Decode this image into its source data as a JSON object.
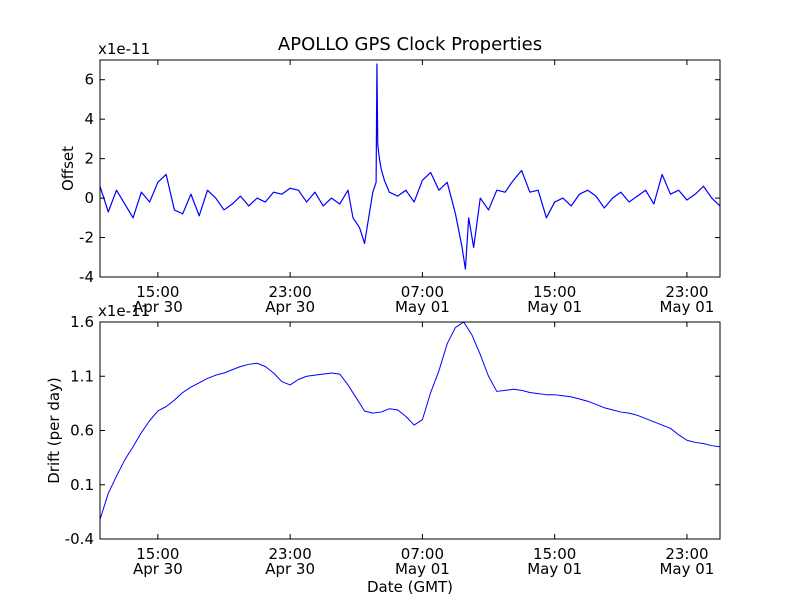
{
  "chart_data": [
    {
      "type": "line",
      "title": "APOLLO GPS Clock Properties",
      "ylabel": "Offset",
      "xlabel": "",
      "scale_label": "x1e-11",
      "x_unit": "hours since Apr 30 11:30 GMT",
      "xlim": [
        0,
        37.5
      ],
      "ylim": [
        -4,
        7
      ],
      "yticks": [
        "6",
        "4",
        "2",
        "0",
        "-2",
        "-4"
      ],
      "ytick_values": [
        6,
        4,
        2,
        0,
        -2,
        -4
      ],
      "xticks": [
        {
          "value": 3.5,
          "time": "15:00",
          "date": "Apr 30"
        },
        {
          "value": 11.5,
          "time": "23:00",
          "date": "Apr 30"
        },
        {
          "value": 19.5,
          "time": "07:00",
          "date": "May 01"
        },
        {
          "value": 27.5,
          "time": "15:00",
          "date": "May 01"
        },
        {
          "value": 35.5,
          "time": "23:00",
          "date": "May 01"
        }
      ],
      "series": [
        {
          "name": "offset",
          "color": "#0000ff",
          "x": [
            0,
            0.5,
            1,
            1.5,
            2,
            2.5,
            3,
            3.5,
            4,
            4.5,
            5,
            5.5,
            6,
            6.5,
            7,
            7.5,
            8,
            8.5,
            9,
            9.5,
            10,
            10.5,
            11,
            11.5,
            12,
            12.5,
            13,
            13.5,
            14,
            14.5,
            15,
            15.3,
            15.7,
            16.0,
            16.5,
            16.7,
            16.75,
            16.8,
            16.9,
            17.0,
            17.2,
            17.5,
            18,
            18.5,
            19,
            19.5,
            20,
            20.5,
            21,
            21.5,
            21.9,
            22.1,
            22.3,
            22.6,
            23,
            23.5,
            24,
            24.5,
            25,
            25.5,
            26,
            26.5,
            27,
            27.5,
            28,
            28.5,
            29,
            29.5,
            30,
            30.5,
            31,
            31.5,
            32,
            32.5,
            33,
            33.5,
            34,
            34.5,
            35,
            35.5,
            36,
            36.5,
            37,
            37.5
          ],
          "values": [
            0.6,
            -0.7,
            0.4,
            -0.3,
            -1.0,
            0.3,
            -0.2,
            0.8,
            1.2,
            -0.6,
            -0.8,
            0.2,
            -0.9,
            0.4,
            0.0,
            -0.6,
            -0.3,
            0.1,
            -0.4,
            0.0,
            -0.2,
            0.3,
            0.2,
            0.5,
            0.4,
            -0.2,
            0.3,
            -0.4,
            0.0,
            -0.3,
            0.4,
            -1.0,
            -1.5,
            -2.3,
            0.3,
            0.8,
            6.8,
            2.7,
            2.0,
            1.5,
            0.9,
            0.3,
            0.1,
            0.4,
            -0.2,
            0.9,
            1.3,
            0.4,
            0.8,
            -0.8,
            -2.5,
            -3.6,
            -1.0,
            -2.5,
            0.0,
            -0.6,
            0.4,
            0.3,
            0.9,
            1.4,
            0.3,
            0.4,
            -1.0,
            -0.2,
            0.0,
            -0.4,
            0.2,
            0.4,
            0.1,
            -0.5,
            0.0,
            0.3,
            -0.2,
            0.1,
            0.4,
            -0.3,
            1.2,
            0.2,
            0.4,
            -0.1,
            0.2,
            0.6,
            0.0,
            -0.4
          ]
        }
      ]
    },
    {
      "type": "line",
      "title": "",
      "ylabel": "Drift (per day)",
      "xlabel": "Date (GMT)",
      "scale_label": "x1e-11",
      "x_unit": "hours since Apr 30 11:30 GMT",
      "xlim": [
        0,
        37.5
      ],
      "ylim": [
        -0.4,
        1.6
      ],
      "yticks": [
        "1.6",
        "1.1",
        "0.6",
        "0.1",
        "-0.4"
      ],
      "ytick_values": [
        1.6,
        1.1,
        0.6,
        0.1,
        -0.4
      ],
      "xticks": [
        {
          "value": 3.5,
          "time": "15:00",
          "date": "Apr 30"
        },
        {
          "value": 11.5,
          "time": "23:00",
          "date": "Apr 30"
        },
        {
          "value": 19.5,
          "time": "07:00",
          "date": "May 01"
        },
        {
          "value": 27.5,
          "time": "15:00",
          "date": "May 01"
        },
        {
          "value": 35.5,
          "time": "23:00",
          "date": "May 01"
        }
      ],
      "series": [
        {
          "name": "drift",
          "color": "#0000ff",
          "x": [
            0,
            0.5,
            1,
            1.5,
            2,
            2.5,
            3,
            3.5,
            4,
            4.5,
            5,
            5.5,
            6,
            6.5,
            7,
            7.5,
            8,
            8.5,
            9,
            9.5,
            10,
            10.5,
            11,
            11.5,
            12,
            12.5,
            13,
            13.5,
            14,
            14.5,
            15,
            15.5,
            16,
            16.5,
            17,
            17.5,
            18,
            18.5,
            19,
            19.5,
            20,
            20.5,
            21,
            21.5,
            22,
            22.5,
            23,
            23.5,
            24,
            24.5,
            25,
            25.5,
            26,
            26.5,
            27,
            27.5,
            28,
            28.5,
            29,
            29.5,
            30,
            30.5,
            31,
            31.5,
            32,
            32.5,
            33,
            33.5,
            34,
            34.5,
            35,
            35.5,
            36,
            36.5,
            37,
            37.5
          ],
          "values": [
            -0.22,
            0.02,
            0.18,
            0.33,
            0.45,
            0.58,
            0.69,
            0.78,
            0.82,
            0.88,
            0.95,
            1.0,
            1.04,
            1.08,
            1.11,
            1.13,
            1.16,
            1.19,
            1.21,
            1.22,
            1.19,
            1.13,
            1.05,
            1.02,
            1.07,
            1.1,
            1.11,
            1.12,
            1.13,
            1.12,
            1.02,
            0.9,
            0.78,
            0.76,
            0.77,
            0.8,
            0.79,
            0.73,
            0.65,
            0.7,
            0.95,
            1.15,
            1.4,
            1.55,
            1.6,
            1.48,
            1.3,
            1.1,
            0.96,
            0.97,
            0.98,
            0.97,
            0.95,
            0.94,
            0.93,
            0.93,
            0.92,
            0.91,
            0.89,
            0.87,
            0.84,
            0.81,
            0.79,
            0.77,
            0.76,
            0.74,
            0.71,
            0.68,
            0.65,
            0.62,
            0.56,
            0.51,
            0.49,
            0.48,
            0.46,
            0.45
          ]
        }
      ]
    }
  ]
}
